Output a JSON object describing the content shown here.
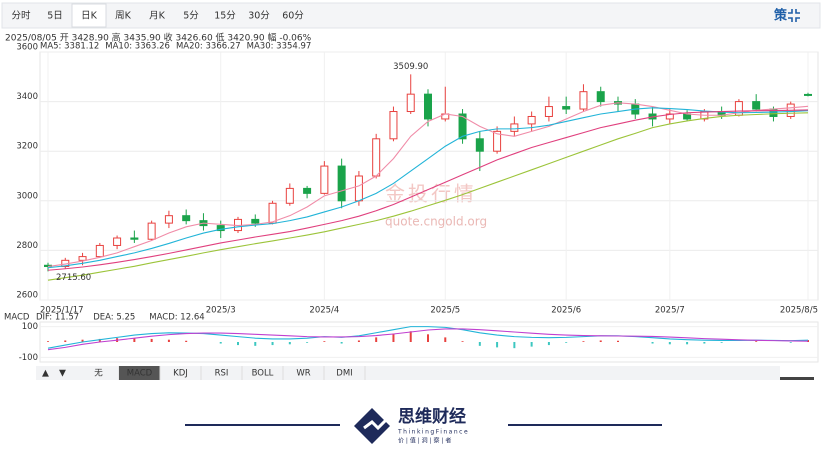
{
  "chart_data": {
    "type": "candlestick",
    "tabs": [
      "分时",
      "5日",
      "日K",
      "周K",
      "月K",
      "5分",
      "15分",
      "30分",
      "60分"
    ],
    "active_tab": 2,
    "right_icon": "策",
    "info": "2025/08/05 开 3428.90 高 3435.90 收 3426.60 低 3420.90 幅 -0.06%",
    "watermark": {
      "name": "金投行情",
      "url": "quote.cngold.org"
    },
    "ylim": [
      2600,
      3600
    ],
    "yticks": [
      2600,
      2800,
      3000,
      3200,
      3400,
      3600
    ],
    "grid": true,
    "up_color": "#e8413e",
    "down_color": "#1aa34a",
    "categories": [
      "2025/1/17",
      null,
      null,
      null,
      null,
      null,
      null,
      null,
      null,
      null,
      "2025/3",
      null,
      null,
      null,
      null,
      null,
      "2025/4",
      null,
      null,
      null,
      null,
      null,
      null,
      "2025/5",
      null,
      null,
      null,
      null,
      null,
      null,
      "2025/6",
      null,
      null,
      null,
      null,
      null,
      "2025/7",
      null,
      null,
      null,
      null,
      null,
      null,
      null,
      "2025/8/5"
    ],
    "candles": {
      "open": [
        2740,
        2735,
        2760,
        2775,
        2820,
        2850,
        2845,
        2910,
        2940,
        2920,
        2900,
        2880,
        2925,
        2910,
        2990,
        3050,
        3030,
        3140,
        3000,
        3100,
        3250,
        3360,
        3430,
        3330,
        3350,
        3250,
        3200,
        3280,
        3310,
        3340,
        3380,
        3370,
        3440,
        3400,
        3390,
        3350,
        3330,
        3350,
        3330,
        3360,
        3345,
        3400,
        3370,
        3340,
        3428.9
      ],
      "high": [
        2750,
        2770,
        2790,
        2830,
        2860,
        2880,
        2920,
        2960,
        2965,
        2950,
        2920,
        2935,
        2945,
        3000,
        3070,
        3060,
        3160,
        3170,
        3120,
        3270,
        3380,
        3509.9,
        3450,
        3460,
        3370,
        3280,
        3300,
        3340,
        3360,
        3420,
        3420,
        3470,
        3460,
        3420,
        3410,
        3380,
        3370,
        3365,
        3370,
        3380,
        3410,
        3430,
        3380,
        3400,
        3435.9
      ],
      "low": [
        2715.6,
        2725,
        2740,
        2770,
        2805,
        2830,
        2840,
        2890,
        2905,
        2880,
        2850,
        2870,
        2895,
        2905,
        2980,
        3010,
        3025,
        2970,
        2980,
        3090,
        3240,
        3350,
        3300,
        3320,
        3230,
        3120,
        3190,
        3260,
        3280,
        3320,
        3350,
        3360,
        3380,
        3360,
        3330,
        3300,
        3310,
        3320,
        3320,
        3330,
        3340,
        3360,
        3320,
        3330,
        3420.9
      ],
      "close": [
        2735,
        2760,
        2775,
        2820,
        2850,
        2845,
        2910,
        2940,
        2920,
        2900,
        2880,
        2925,
        2910,
        2990,
        3050,
        3030,
        3140,
        3000,
        3100,
        3250,
        3360,
        3430,
        3330,
        3350,
        3250,
        3200,
        3280,
        3310,
        3340,
        3380,
        3370,
        3440,
        3400,
        3390,
        3350,
        3330,
        3350,
        3330,
        3360,
        3345,
        3400,
        3370,
        3340,
        3390,
        3426.6
      ]
    },
    "annotations": [
      {
        "label": "3509.90",
        "value": 3509.9,
        "index": 21
      },
      {
        "label": "2715.60",
        "value": 2715.6,
        "index": 0
      }
    ],
    "ma_series": [
      {
        "name": "MA5",
        "legend_text": "MA5: 3381.12",
        "color": "#f08ca8",
        "values": [
          2735,
          2745,
          2757,
          2772,
          2790,
          2815,
          2840,
          2870,
          2895,
          2910,
          2905,
          2900,
          2905,
          2915,
          2940,
          2975,
          3020,
          3040,
          3060,
          3100,
          3170,
          3260,
          3320,
          3350,
          3340,
          3300,
          3270,
          3260,
          3280,
          3300,
          3330,
          3360,
          3385,
          3395,
          3390,
          3380,
          3365,
          3350,
          3345,
          3345,
          3355,
          3365,
          3370,
          3375,
          3381.12
        ]
      },
      {
        "name": "MA10",
        "legend_text": "MA10: 3363.26",
        "color": "#22b4d8",
        "values": [
          2730,
          2738,
          2748,
          2760,
          2775,
          2790,
          2808,
          2828,
          2850,
          2870,
          2885,
          2895,
          2902,
          2908,
          2920,
          2935,
          2955,
          2975,
          3000,
          3030,
          3070,
          3120,
          3170,
          3220,
          3260,
          3280,
          3290,
          3290,
          3295,
          3305,
          3320,
          3335,
          3350,
          3360,
          3370,
          3375,
          3372,
          3368,
          3362,
          3358,
          3355,
          3356,
          3358,
          3360,
          3363.26
        ]
      },
      {
        "name": "MA20",
        "legend_text": "MA20: 3366.27",
        "color": "#e0407e",
        "values": [
          2720,
          2726,
          2733,
          2742,
          2752,
          2763,
          2775,
          2788,
          2802,
          2816,
          2830,
          2842,
          2854,
          2865,
          2876,
          2890,
          2905,
          2920,
          2938,
          2960,
          2985,
          3015,
          3045,
          3075,
          3105,
          3135,
          3165,
          3190,
          3215,
          3235,
          3255,
          3275,
          3295,
          3310,
          3325,
          3338,
          3348,
          3355,
          3358,
          3360,
          3362,
          3363,
          3364,
          3365,
          3366.27
        ]
      },
      {
        "name": "MA30",
        "legend_text": "MA30: 3354.97",
        "color": "#9cc43a",
        "values": [
          2680,
          2690,
          2700,
          2712,
          2724,
          2736,
          2750,
          2763,
          2776,
          2790,
          2803,
          2815,
          2827,
          2838,
          2850,
          2862,
          2875,
          2890,
          2905,
          2920,
          2938,
          2958,
          2980,
          3002,
          3025,
          3050,
          3075,
          3100,
          3125,
          3150,
          3175,
          3200,
          3225,
          3250,
          3272,
          3295,
          3310,
          3322,
          3332,
          3340,
          3345,
          3348,
          3351,
          3353,
          3354.97
        ]
      }
    ],
    "macd": {
      "title": "MACD",
      "ylim": [
        -130,
        130
      ],
      "yticks": [
        100,
        -100
      ],
      "histogram": {
        "legend_text": "MACD: 12.64",
        "color": "#e0407e",
        "values": [
          5,
          10,
          15,
          20,
          25,
          25,
          20,
          15,
          8,
          0,
          -10,
          -20,
          -25,
          -20,
          -15,
          -5,
          5,
          -10,
          10,
          30,
          55,
          70,
          50,
          30,
          5,
          -25,
          -35,
          -40,
          -30,
          -20,
          -5,
          5,
          10,
          8,
          0,
          -10,
          -15,
          -15,
          -10,
          -5,
          0,
          5,
          0,
          -5,
          12.64
        ]
      },
      "lines": [
        {
          "name": "DIF",
          "legend_text": "DIF: 11.57",
          "color": "#22b4d8",
          "values": [
            -40,
            -20,
            0,
            15,
            30,
            45,
            55,
            60,
            58,
            55,
            45,
            35,
            25,
            20,
            20,
            25,
            35,
            30,
            40,
            60,
            80,
            100,
            100,
            95,
            80,
            60,
            45,
            35,
            30,
            28,
            30,
            35,
            40,
            40,
            35,
            28,
            20,
            15,
            12,
            10,
            10,
            12,
            10,
            9,
            11.57
          ]
        },
        {
          "name": "DEA",
          "legend_text": "DEA: 5.25",
          "color": "#c040d0",
          "values": [
            -50,
            -35,
            -15,
            0,
            12,
            25,
            38,
            48,
            55,
            58,
            58,
            55,
            50,
            45,
            40,
            35,
            33,
            33,
            35,
            42,
            52,
            65,
            78,
            85,
            85,
            80,
            73,
            65,
            57,
            50,
            45,
            42,
            40,
            39,
            38,
            36,
            32,
            27,
            22,
            18,
            14,
            11,
            9,
            7,
            5.25
          ]
        }
      ]
    },
    "indicator_tabs": [
      "无",
      "MACD",
      "KDJ",
      "RSI",
      "BOLL",
      "WR",
      "DMI"
    ],
    "active_indicator": 1,
    "footer": {
      "brand": "思维财经",
      "brand_en": "ThinkingFinance",
      "slogan": "价 | 值 | 洞 | 察 | 者"
    }
  }
}
